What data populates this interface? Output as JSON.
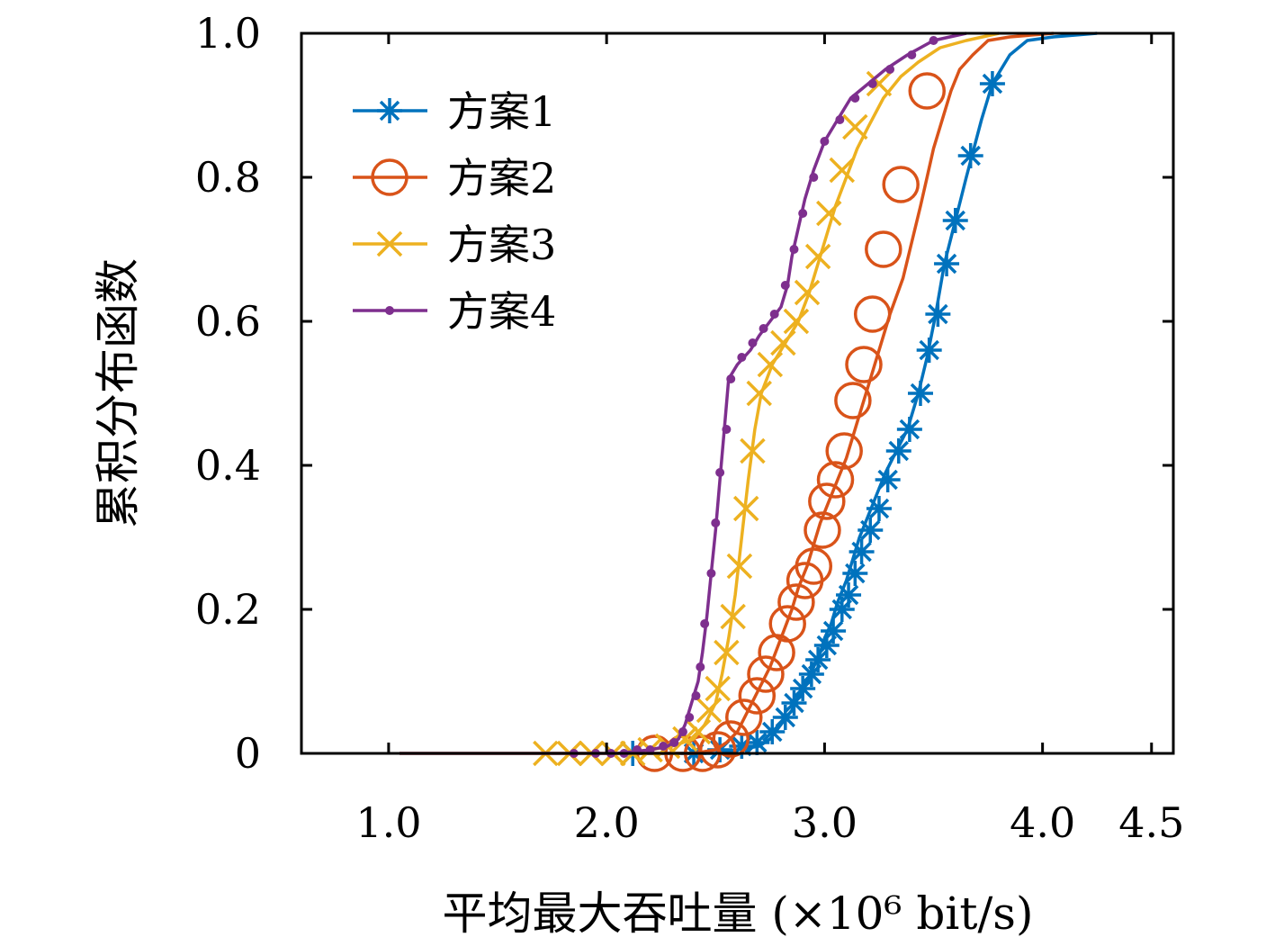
{
  "chart_data": {
    "type": "line",
    "title": "",
    "xlabel": "平均最大吞吐量 (×10⁶ bit/s)",
    "ylabel": "累积分布函数",
    "xlim": [
      0.6,
      4.6
    ],
    "ylim": [
      0,
      1.0
    ],
    "x_ticks": [
      1.0,
      2.0,
      3.0,
      4.0,
      4.5
    ],
    "x_tick_labels": [
      "1.0",
      "2.0",
      "3.0",
      "4.0",
      "4.5"
    ],
    "y_ticks": [
      0,
      0.2,
      0.4,
      0.6,
      0.8,
      1.0
    ],
    "y_tick_labels": [
      "0",
      "0.2",
      "0.4",
      "0.6",
      "0.8",
      "1.0"
    ],
    "grid": false,
    "legend_position": "top-left",
    "series": [
      {
        "name": "方案1",
        "color": "#0072BD",
        "marker": "asterisk",
        "points": [
          [
            2.05,
            0
          ],
          [
            2.3,
            0
          ],
          [
            2.5,
            0
          ],
          [
            2.6,
            0.005
          ],
          [
            2.7,
            0.01
          ],
          [
            2.75,
            0.02
          ],
          [
            2.8,
            0.04
          ],
          [
            2.85,
            0.06
          ],
          [
            2.88,
            0.08
          ],
          [
            2.92,
            0.1
          ],
          [
            2.95,
            0.12
          ],
          [
            2.98,
            0.14
          ],
          [
            3.0,
            0.16
          ],
          [
            3.03,
            0.18
          ],
          [
            3.06,
            0.21
          ],
          [
            3.1,
            0.24
          ],
          [
            3.13,
            0.27
          ],
          [
            3.16,
            0.3
          ],
          [
            3.2,
            0.33
          ],
          [
            3.24,
            0.36
          ],
          [
            3.28,
            0.39
          ],
          [
            3.33,
            0.42
          ],
          [
            3.38,
            0.45
          ],
          [
            3.43,
            0.5
          ],
          [
            3.47,
            0.55
          ],
          [
            3.51,
            0.61
          ],
          [
            3.55,
            0.68
          ],
          [
            3.6,
            0.74
          ],
          [
            3.65,
            0.8
          ],
          [
            3.72,
            0.88
          ],
          [
            3.77,
            0.93
          ],
          [
            3.85,
            0.97
          ],
          [
            3.93,
            0.99
          ],
          [
            4.05,
            0.995
          ],
          [
            4.25,
            1.0
          ]
        ],
        "marker_points": [
          [
            2.12,
            0
          ],
          [
            2.4,
            0
          ],
          [
            2.52,
            0.005
          ],
          [
            2.62,
            0.01
          ],
          [
            2.69,
            0.015
          ],
          [
            2.76,
            0.03
          ],
          [
            2.82,
            0.05
          ],
          [
            2.86,
            0.07
          ],
          [
            2.9,
            0.09
          ],
          [
            2.94,
            0.11
          ],
          [
            2.97,
            0.13
          ],
          [
            3.01,
            0.15
          ],
          [
            3.04,
            0.17
          ],
          [
            3.08,
            0.2
          ],
          [
            3.11,
            0.22
          ],
          [
            3.14,
            0.25
          ],
          [
            3.17,
            0.28
          ],
          [
            3.21,
            0.31
          ],
          [
            3.25,
            0.34
          ],
          [
            3.29,
            0.38
          ],
          [
            3.34,
            0.42
          ],
          [
            3.39,
            0.45
          ],
          [
            3.44,
            0.5
          ],
          [
            3.48,
            0.56
          ],
          [
            3.52,
            0.61
          ],
          [
            3.56,
            0.68
          ],
          [
            3.6,
            0.74
          ],
          [
            3.67,
            0.83
          ],
          [
            3.77,
            0.93
          ]
        ]
      },
      {
        "name": "方案2",
        "color": "#D95319",
        "marker": "circle",
        "points": [
          [
            2.15,
            0
          ],
          [
            2.4,
            0
          ],
          [
            2.5,
            0.005
          ],
          [
            2.55,
            0.015
          ],
          [
            2.6,
            0.03
          ],
          [
            2.65,
            0.06
          ],
          [
            2.7,
            0.09
          ],
          [
            2.75,
            0.12
          ],
          [
            2.8,
            0.16
          ],
          [
            2.85,
            0.2
          ],
          [
            2.88,
            0.23
          ],
          [
            2.92,
            0.26
          ],
          [
            2.95,
            0.29
          ],
          [
            2.98,
            0.32
          ],
          [
            3.02,
            0.35
          ],
          [
            3.06,
            0.38
          ],
          [
            3.1,
            0.41
          ],
          [
            3.15,
            0.46
          ],
          [
            3.2,
            0.51
          ],
          [
            3.25,
            0.56
          ],
          [
            3.3,
            0.61
          ],
          [
            3.36,
            0.66
          ],
          [
            3.4,
            0.71
          ],
          [
            3.44,
            0.76
          ],
          [
            3.47,
            0.8
          ],
          [
            3.5,
            0.84
          ],
          [
            3.54,
            0.88
          ],
          [
            3.58,
            0.92
          ],
          [
            3.62,
            0.95
          ],
          [
            3.68,
            0.97
          ],
          [
            3.75,
            0.99
          ],
          [
            3.85,
            0.995
          ],
          [
            4.05,
            1.0
          ]
        ],
        "marker_points": [
          [
            2.22,
            0
          ],
          [
            2.35,
            0
          ],
          [
            2.44,
            0
          ],
          [
            2.51,
            0.005
          ],
          [
            2.57,
            0.02
          ],
          [
            2.63,
            0.05
          ],
          [
            2.69,
            0.08
          ],
          [
            2.73,
            0.11
          ],
          [
            2.78,
            0.14
          ],
          [
            2.83,
            0.18
          ],
          [
            2.87,
            0.21
          ],
          [
            2.91,
            0.24
          ],
          [
            2.95,
            0.26
          ],
          [
            2.99,
            0.31
          ],
          [
            3.01,
            0.35
          ],
          [
            3.05,
            0.38
          ],
          [
            3.09,
            0.42
          ],
          [
            3.13,
            0.49
          ],
          [
            3.18,
            0.54
          ],
          [
            3.22,
            0.61
          ],
          [
            3.27,
            0.7
          ],
          [
            3.35,
            0.79
          ],
          [
            3.47,
            0.92
          ]
        ]
      },
      {
        "name": "方案3",
        "color": "#EDB120",
        "marker": "x",
        "points": [
          [
            1.05,
            0
          ],
          [
            1.7,
            0
          ],
          [
            2.1,
            0
          ],
          [
            2.3,
            0.01
          ],
          [
            2.4,
            0.02
          ],
          [
            2.45,
            0.04
          ],
          [
            2.5,
            0.07
          ],
          [
            2.53,
            0.11
          ],
          [
            2.56,
            0.16
          ],
          [
            2.59,
            0.22
          ],
          [
            2.62,
            0.3
          ],
          [
            2.65,
            0.38
          ],
          [
            2.68,
            0.45
          ],
          [
            2.71,
            0.5
          ],
          [
            2.76,
            0.54
          ],
          [
            2.82,
            0.57
          ],
          [
            2.88,
            0.6
          ],
          [
            2.93,
            0.64
          ],
          [
            2.97,
            0.68
          ],
          [
            3.01,
            0.72
          ],
          [
            3.05,
            0.76
          ],
          [
            3.1,
            0.8
          ],
          [
            3.15,
            0.84
          ],
          [
            3.2,
            0.87
          ],
          [
            3.27,
            0.91
          ],
          [
            3.35,
            0.94
          ],
          [
            3.43,
            0.96
          ],
          [
            3.53,
            0.98
          ],
          [
            3.65,
            0.99
          ],
          [
            3.8,
            1.0
          ]
        ],
        "marker_points": [
          [
            1.72,
            0
          ],
          [
            1.83,
            0
          ],
          [
            1.93,
            0
          ],
          [
            2.03,
            0
          ],
          [
            2.12,
            0
          ],
          [
            2.2,
            0.005
          ],
          [
            2.28,
            0.01
          ],
          [
            2.36,
            0.02
          ],
          [
            2.42,
            0.03
          ],
          [
            2.47,
            0.06
          ],
          [
            2.51,
            0.09
          ],
          [
            2.55,
            0.14
          ],
          [
            2.58,
            0.19
          ],
          [
            2.61,
            0.26
          ],
          [
            2.64,
            0.34
          ],
          [
            2.67,
            0.42
          ],
          [
            2.7,
            0.5
          ],
          [
            2.75,
            0.54
          ],
          [
            2.81,
            0.57
          ],
          [
            2.87,
            0.6
          ],
          [
            2.92,
            0.64
          ],
          [
            2.97,
            0.69
          ],
          [
            3.02,
            0.75
          ],
          [
            3.08,
            0.81
          ],
          [
            3.14,
            0.87
          ],
          [
            3.25,
            0.93
          ]
        ]
      },
      {
        "name": "方案4",
        "color": "#7E2F8E",
        "marker": "dot",
        "points": [
          [
            1.05,
            0
          ],
          [
            1.8,
            0
          ],
          [
            2.05,
            0
          ],
          [
            2.2,
            0.005
          ],
          [
            2.28,
            0.01
          ],
          [
            2.33,
            0.02
          ],
          [
            2.36,
            0.04
          ],
          [
            2.39,
            0.07
          ],
          [
            2.42,
            0.1
          ],
          [
            2.44,
            0.14
          ],
          [
            2.46,
            0.19
          ],
          [
            2.48,
            0.25
          ],
          [
            2.5,
            0.31
          ],
          [
            2.52,
            0.38
          ],
          [
            2.54,
            0.45
          ],
          [
            2.56,
            0.52
          ],
          [
            2.6,
            0.54
          ],
          [
            2.66,
            0.56
          ],
          [
            2.7,
            0.58
          ],
          [
            2.75,
            0.6
          ],
          [
            2.8,
            0.62
          ],
          [
            2.83,
            0.65
          ],
          [
            2.85,
            0.69
          ],
          [
            2.88,
            0.73
          ],
          [
            2.91,
            0.77
          ],
          [
            2.95,
            0.81
          ],
          [
            3.0,
            0.85
          ],
          [
            3.06,
            0.88
          ],
          [
            3.12,
            0.91
          ],
          [
            3.2,
            0.93
          ],
          [
            3.28,
            0.95
          ],
          [
            3.38,
            0.97
          ],
          [
            3.5,
            0.99
          ],
          [
            3.65,
            1.0
          ]
        ],
        "marker_points": [
          [
            1.85,
            0
          ],
          [
            1.95,
            0
          ],
          [
            2.02,
            0
          ],
          [
            2.08,
            0
          ],
          [
            2.14,
            0.005
          ],
          [
            2.2,
            0.005
          ],
          [
            2.26,
            0.01
          ],
          [
            2.31,
            0.015
          ],
          [
            2.35,
            0.03
          ],
          [
            2.38,
            0.05
          ],
          [
            2.41,
            0.08
          ],
          [
            2.43,
            0.12
          ],
          [
            2.45,
            0.18
          ],
          [
            2.48,
            0.25
          ],
          [
            2.5,
            0.32
          ],
          [
            2.52,
            0.39
          ],
          [
            2.55,
            0.45
          ],
          [
            2.57,
            0.52
          ],
          [
            2.62,
            0.55
          ],
          [
            2.67,
            0.57
          ],
          [
            2.72,
            0.59
          ],
          [
            2.77,
            0.61
          ],
          [
            2.82,
            0.65
          ],
          [
            2.86,
            0.7
          ],
          [
            2.9,
            0.75
          ],
          [
            2.95,
            0.8
          ],
          [
            3.0,
            0.85
          ],
          [
            3.07,
            0.88
          ],
          [
            3.14,
            0.91
          ],
          [
            3.22,
            0.93
          ],
          [
            3.3,
            0.95
          ],
          [
            3.4,
            0.97
          ],
          [
            3.5,
            0.99
          ]
        ]
      }
    ]
  }
}
